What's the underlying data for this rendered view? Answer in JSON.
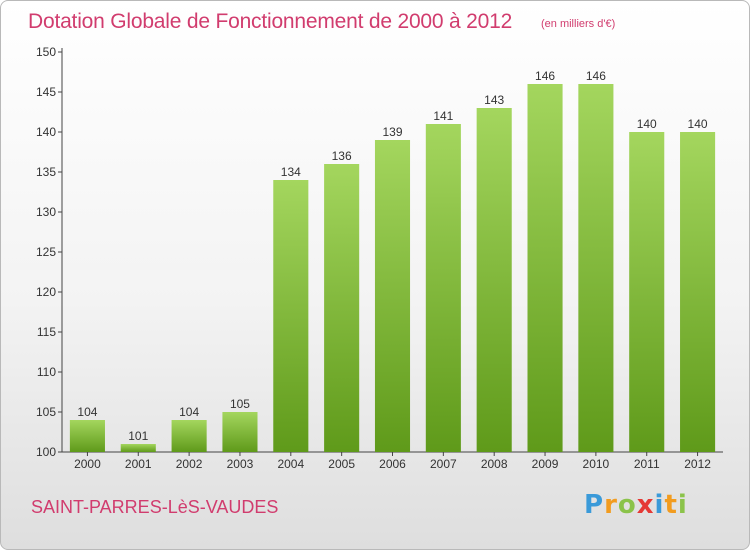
{
  "header": {
    "title": "Dotation Globale de Fonctionnement de 2000 à 2012",
    "unit": "(en milliers d'€)"
  },
  "footer": {
    "commune": "SAINT-PARRES-LèS-VAUDES",
    "logo_letters": [
      "P",
      "r",
      "o",
      "x",
      "i",
      "t",
      "i"
    ],
    "logo_colors": [
      "#3a9ad9",
      "#f29c1f",
      "#8bc34a",
      "#e53935",
      "#3a9ad9",
      "#f29c1f",
      "#8bc34a"
    ]
  },
  "colors": {
    "bar_top": "#a4d65e",
    "bar_bottom": "#5f9a1a",
    "title": "#d13c6e",
    "axis_text": "#333333"
  },
  "chart_data": {
    "type": "bar",
    "title": "Dotation Globale de Fonctionnement de 2000 à 2012",
    "subtitle": "(en milliers d'€)",
    "xlabel": "",
    "ylabel": "",
    "categories": [
      "2000",
      "2001",
      "2002",
      "2003",
      "2004",
      "2005",
      "2006",
      "2007",
      "2008",
      "2009",
      "2010",
      "2011",
      "2012"
    ],
    "values": [
      104,
      101,
      104,
      105,
      134,
      136,
      139,
      141,
      143,
      146,
      146,
      140,
      140
    ],
    "ylim": [
      100,
      150
    ],
    "yticks": [
      100,
      105,
      110,
      115,
      120,
      125,
      130,
      135,
      140,
      145,
      150
    ],
    "grid": false,
    "data_labels": true
  }
}
